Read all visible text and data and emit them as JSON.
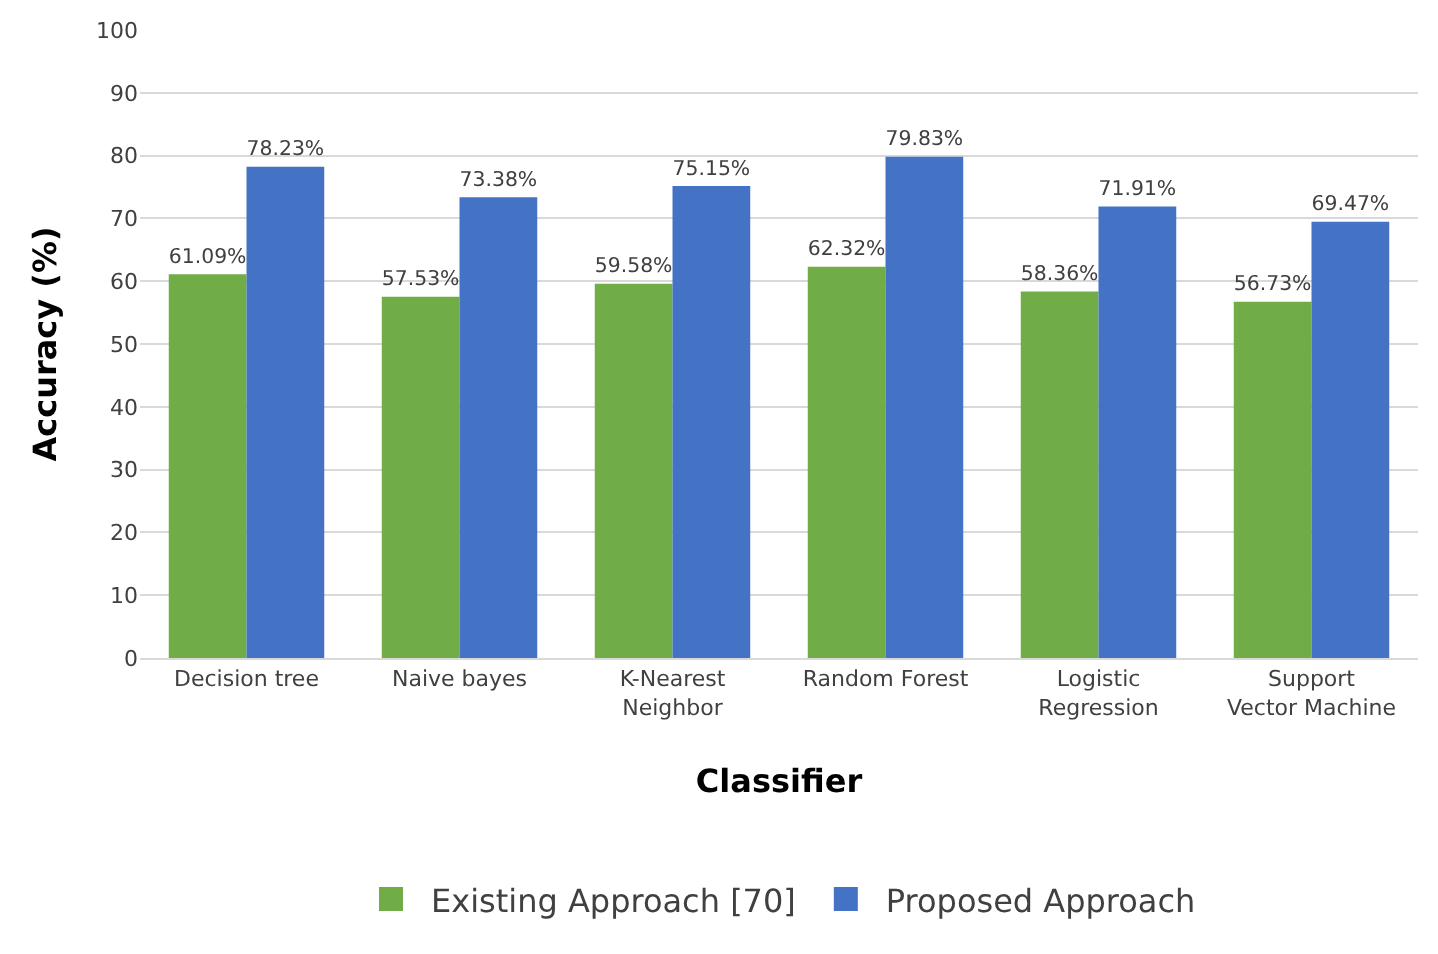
{
  "chart_data": {
    "type": "bar",
    "xlabel": "Classifier",
    "ylabel": "Accuracy (%)",
    "categories": [
      "Decision tree",
      "Naive bayes",
      "K-Nearest Neighbor",
      "Random Forest",
      "Logistic Regression",
      "Support Vector Machine"
    ],
    "series": [
      {
        "name": "Existing Approach [70]",
        "color": "#70ad47",
        "values": [
          61.09,
          57.53,
          59.58,
          62.32,
          58.36,
          56.73
        ],
        "value_labels": [
          "61.09%",
          "57.53%",
          "59.58%",
          "62.32%",
          "58.36%",
          "56.73%"
        ]
      },
      {
        "name": "Proposed Approach",
        "color": "#4472c4",
        "values": [
          78.23,
          73.38,
          75.15,
          79.83,
          71.91,
          69.47
        ],
        "value_labels": [
          "78.23%",
          "73.38%",
          "75.15%",
          "79.83%",
          "71.91%",
          "69.47%"
        ]
      }
    ],
    "ylim": [
      0,
      100
    ],
    "yticks": [
      0,
      10,
      20,
      30,
      40,
      50,
      60,
      70,
      80,
      90,
      100
    ],
    "grid": "y",
    "legend": "bottom"
  }
}
